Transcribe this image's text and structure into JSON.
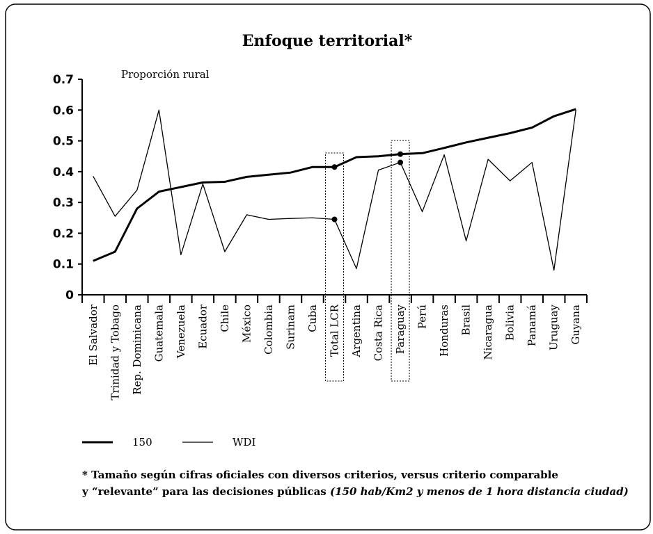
{
  "chart_data": {
    "type": "line",
    "title": "Enfoque territorial*",
    "y_label": "Proporción rural",
    "categories": [
      "El Salvador",
      "Trinidad y Tobago",
      "Rep. Dominicana",
      "Guatemala",
      "Venezuela",
      "Ecuador",
      "Chile",
      "México",
      "Colombia",
      "Surinam",
      "Cuba",
      "Total LCR",
      "Argentina",
      "Costa Rica",
      "Paraguay",
      "Perú",
      "Honduras",
      "Brasil",
      "Nicaragua",
      "Bolivia",
      "Panamá",
      "Uruguay",
      "Guyana"
    ],
    "series": [
      {
        "name": "150",
        "color": "#000000",
        "width": 3,
        "values": [
          0.11,
          0.14,
          0.28,
          0.335,
          0.35,
          0.365,
          0.367,
          0.383,
          0.39,
          0.397,
          0.415,
          0.415,
          0.447,
          0.45,
          0.457,
          0.46,
          0.477,
          0.495,
          0.51,
          0.525,
          0.543,
          0.58,
          0.603
        ]
      },
      {
        "name": "WDI",
        "color": "#000000",
        "width": 1.3,
        "values": [
          0.385,
          0.255,
          0.34,
          0.6,
          0.13,
          0.36,
          0.14,
          0.26,
          0.245,
          0.248,
          0.25,
          0.245,
          0.085,
          0.405,
          0.43,
          0.27,
          0.455,
          0.175,
          0.44,
          0.37,
          0.43,
          0.08,
          0.6
        ]
      }
    ],
    "highlight": [
      11,
      14
    ],
    "ylim": [
      0,
      0.7
    ],
    "yticks": [
      0,
      0.1,
      0.2,
      0.3,
      0.4,
      0.5,
      0.6,
      0.7
    ],
    "grid": false,
    "note": {
      "line1": "* Tamaño según cifras oficiales con diversos criterios, versus criterio comparable",
      "line2": "y “relevante” para las decisiones públicas ",
      "line2_italic": "(150 hab/Km2 y menos de 1 hora distancia ciudad)"
    }
  }
}
